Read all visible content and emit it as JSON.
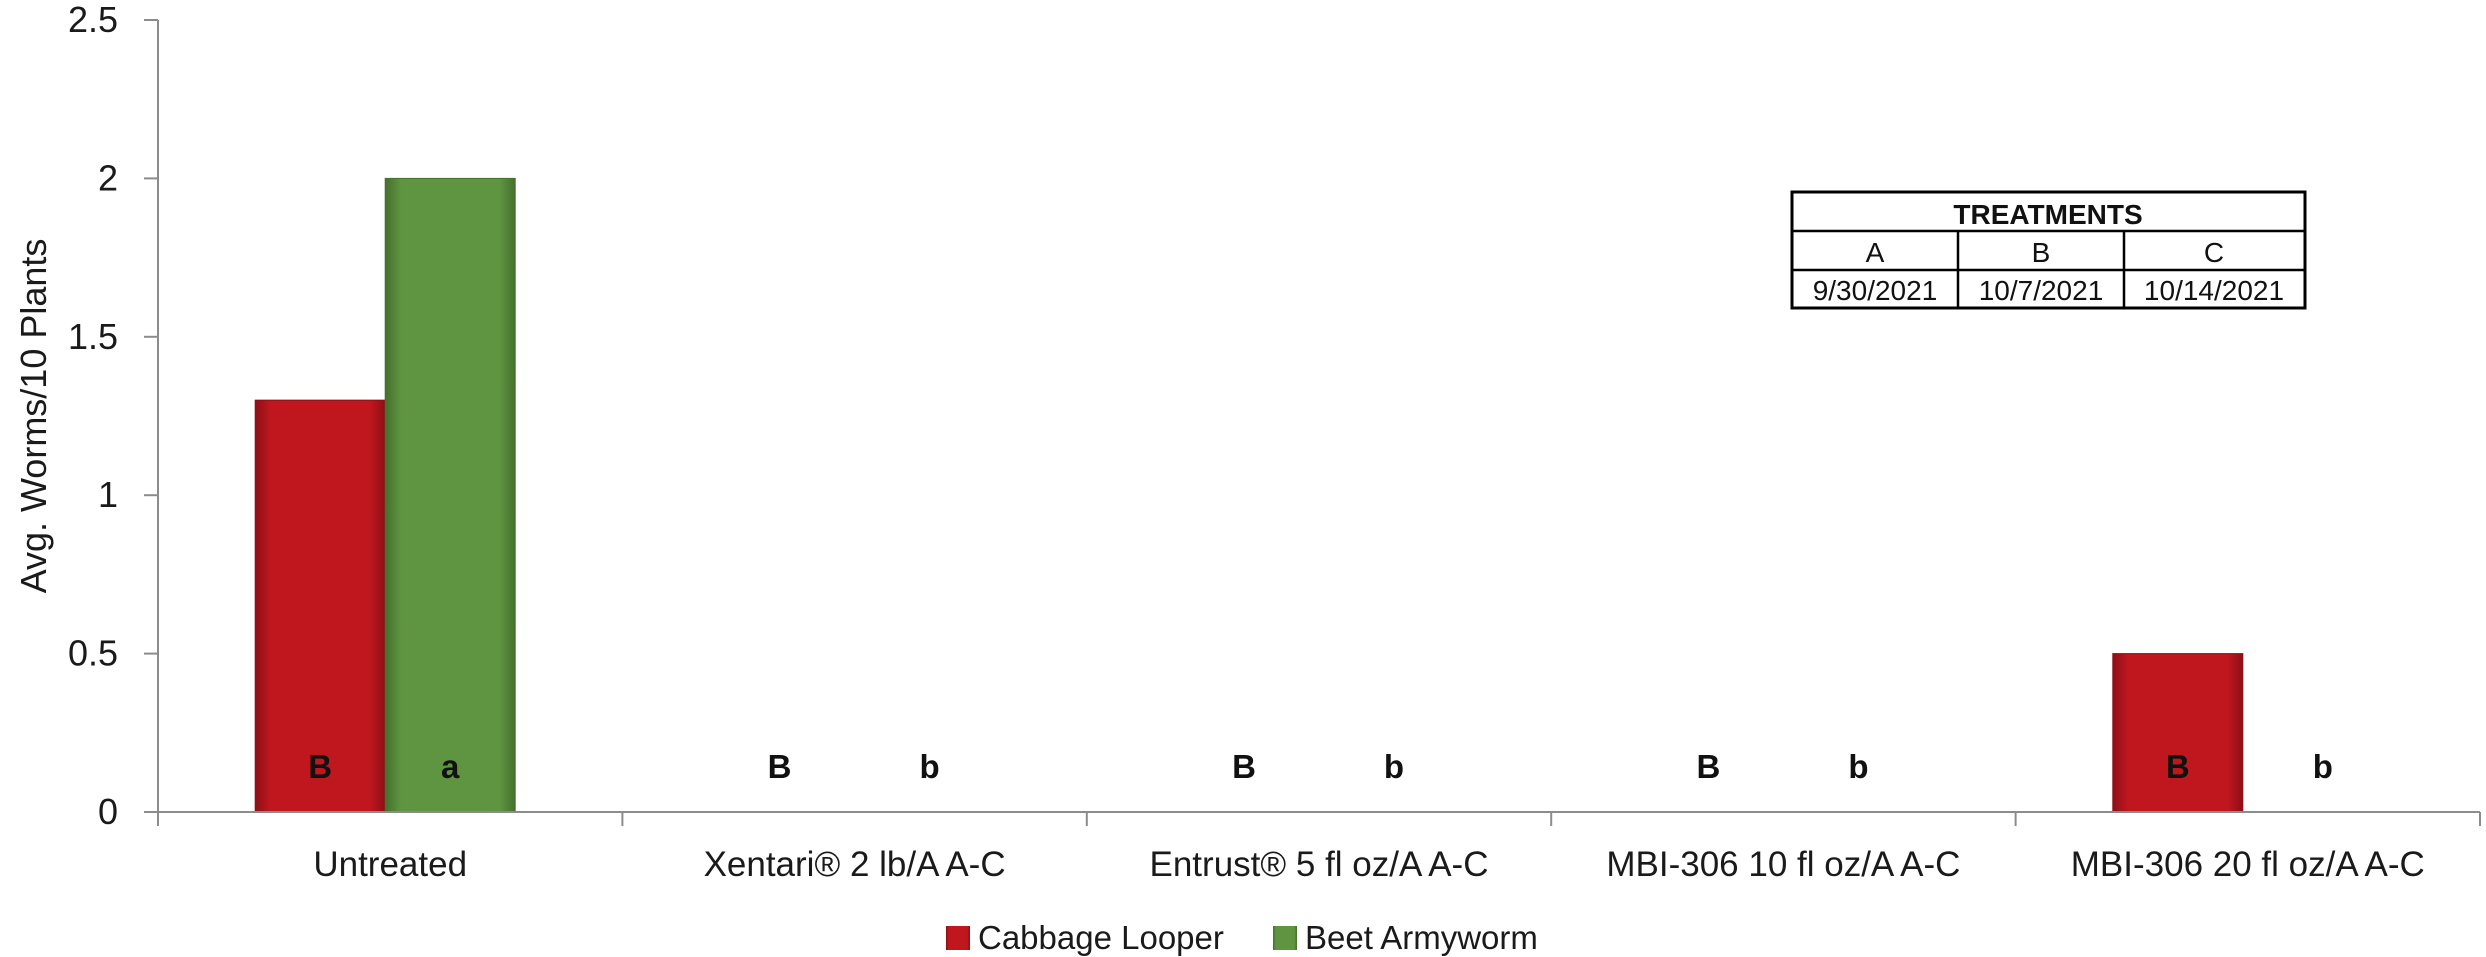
{
  "chart_data": {
    "type": "bar",
    "title": "",
    "xlabel": "",
    "ylabel": "Avg. Worms/10 Plants",
    "ylim": [
      0,
      2.5
    ],
    "yticks": [
      0,
      0.5,
      1,
      1.5,
      2,
      2.5
    ],
    "ytick_labels": [
      "0",
      "0.5",
      "1",
      "1.5",
      "2",
      "2.5"
    ],
    "grid": false,
    "legend_position": "bottom",
    "categories": [
      "Untreated",
      "Xentari® 2 lb/A A-C",
      "Entrust® 5 fl oz/A A-C",
      "MBI-306 10 fl oz/A A-C",
      "MBI-306 20 fl oz/A A-C"
    ],
    "series": [
      {
        "name": "Cabbage Looper",
        "color": "#c0171f",
        "values": [
          1.3,
          0,
          0,
          0,
          0.5
        ],
        "letters": [
          "B",
          "B",
          "B",
          "B",
          "B"
        ]
      },
      {
        "name": "Beet Armyworm",
        "color": "#5f9441",
        "values": [
          2.0,
          0,
          0,
          0,
          0
        ],
        "letters": [
          "a",
          "b",
          "b",
          "b",
          "b"
        ]
      }
    ],
    "treatments_table": {
      "title": "TREATMENTS",
      "headers": [
        "A",
        "B",
        "C"
      ],
      "dates": [
        "9/30/2021",
        "10/7/2021",
        "10/14/2021"
      ]
    }
  }
}
